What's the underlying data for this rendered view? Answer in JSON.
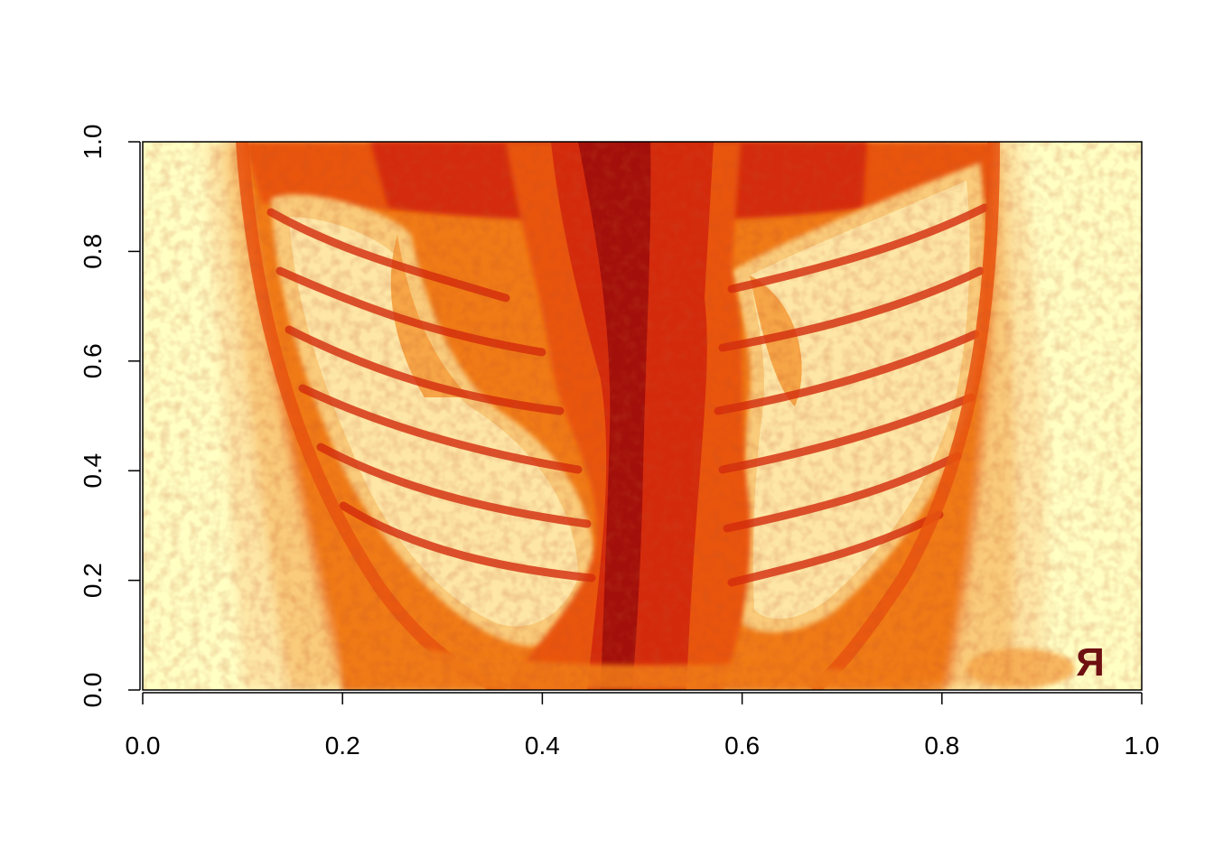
{
  "chart_data": {
    "type": "heatmap",
    "title": "",
    "xlabel": "",
    "ylabel": "",
    "xlim": [
      0,
      1
    ],
    "ylim": [
      0,
      1
    ],
    "x_ticks": [
      0.0,
      0.2,
      0.4,
      0.6,
      0.8,
      1.0
    ],
    "y_ticks": [
      0.0,
      0.2,
      0.4,
      0.6,
      0.8,
      1.0
    ],
    "x_tick_labels": [
      "0.0",
      "0.2",
      "0.4",
      "0.6",
      "0.8",
      "1.0"
    ],
    "y_tick_labels": [
      "0.0",
      "0.2",
      "0.4",
      "0.6",
      "0.8",
      "1.0"
    ],
    "grid": false,
    "legend": "none",
    "colormap": "heat (dark red to pale yellow)",
    "palette": [
      "#a30f0a",
      "#d42a0c",
      "#e9540f",
      "#f07a12",
      "#f6a547",
      "#f9cb7a",
      "#fde6a6",
      "#ffffc4"
    ],
    "image_subject": "chest x-ray",
    "marker_text": "R",
    "marker_color": "#6e0f12"
  }
}
